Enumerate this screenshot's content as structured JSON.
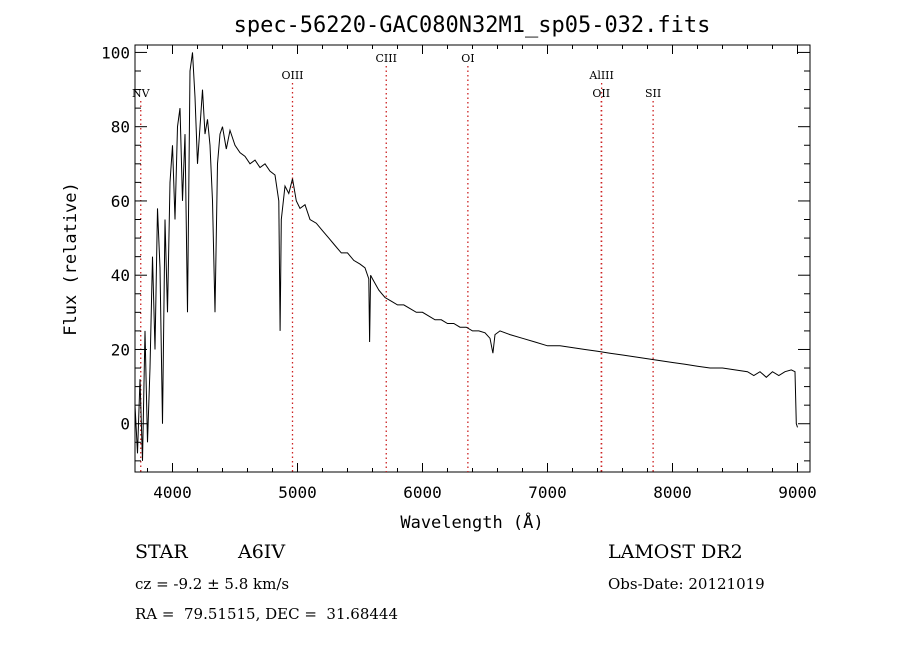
{
  "chart_data": {
    "type": "line",
    "title": "spec-56220-GAC080N32M1_sp05-032.fits",
    "xlabel": "Wavelength (Å)",
    "ylabel": "Flux (relative)",
    "xlim": [
      3700,
      9100
    ],
    "ylim": [
      -13,
      102
    ],
    "x_ticks": [
      "4000",
      "5000",
      "6000",
      "7000",
      "8000",
      "9000"
    ],
    "y_ticks": [
      "0",
      "20",
      "40",
      "60",
      "80",
      "100"
    ],
    "x_tick_values": [
      4000,
      5000,
      6000,
      7000,
      8000,
      9000
    ],
    "y_tick_values": [
      0,
      20,
      40,
      60,
      80,
      100
    ],
    "grid": false,
    "line_color": "#000000",
    "marker_color": "#cc2222",
    "line_markers": [
      {
        "label": "NV",
        "x": 3746,
        "level": 2
      },
      {
        "label": "OIII",
        "x": 4960,
        "level": 1
      },
      {
        "label": "CIII",
        "x": 5710,
        "level": 0
      },
      {
        "label": "OI",
        "x": 6363,
        "level": 0
      },
      {
        "label": "AlIII",
        "x": 7433,
        "level": 1
      },
      {
        "label": "OII",
        "x": 7430,
        "level": 2
      },
      {
        "label": "SII",
        "x": 7845,
        "level": 2
      }
    ],
    "series": [
      {
        "x": [
          3700,
          3720,
          3740,
          3760,
          3780,
          3800,
          3820,
          3840,
          3860,
          3880,
          3900,
          3920,
          3940,
          3960,
          3980,
          4000,
          4020,
          4040,
          4060,
          4080,
          4100,
          4120,
          4140,
          4160,
          4180,
          4200,
          4220,
          4240,
          4260,
          4280,
          4300,
          4320,
          4340,
          4360,
          4380,
          4400,
          4430,
          4460,
          4500,
          4540,
          4580,
          4620,
          4660,
          4700,
          4740,
          4780,
          4820,
          4850,
          4861,
          4870,
          4900,
          4930,
          4960,
          4990,
          5020,
          5060,
          5100,
          5150,
          5200,
          5250,
          5300,
          5350,
          5400,
          5450,
          5500,
          5540,
          5570,
          5577,
          5585,
          5600,
          5650,
          5700,
          5750,
          5800,
          5850,
          5900,
          5950,
          6000,
          6050,
          6100,
          6150,
          6200,
          6250,
          6300,
          6350,
          6400,
          6450,
          6500,
          6540,
          6563,
          6580,
          6620,
          6700,
          6800,
          6900,
          7000,
          7100,
          7200,
          7300,
          7400,
          7500,
          7600,
          7700,
          7800,
          7900,
          8000,
          8100,
          8200,
          8300,
          8400,
          8500,
          8600,
          8650,
          8700,
          8750,
          8800,
          8850,
          8900,
          8950,
          8980,
          8990,
          9000
        ],
        "y": [
          5,
          -8,
          12,
          -10,
          25,
          -5,
          15,
          45,
          20,
          58,
          42,
          0,
          55,
          30,
          65,
          75,
          55,
          80,
          85,
          60,
          78,
          30,
          95,
          100,
          88,
          70,
          80,
          90,
          78,
          82,
          75,
          60,
          30,
          70,
          78,
          80,
          74,
          79,
          75,
          73,
          72,
          70,
          71,
          69,
          70,
          68,
          67,
          60,
          25,
          55,
          64,
          62,
          66,
          60,
          58,
          59,
          55,
          54,
          52,
          50,
          48,
          46,
          46,
          44,
          43,
          42,
          39,
          22,
          40,
          39,
          36,
          34,
          33,
          32,
          32,
          31,
          30,
          30,
          29,
          28,
          28,
          27,
          27,
          26,
          26,
          25,
          25,
          24.5,
          23,
          19,
          24,
          25,
          24,
          23,
          22,
          21,
          21,
          20.5,
          20,
          19.5,
          19,
          18.5,
          18,
          17.5,
          17,
          16.5,
          16,
          15.5,
          15,
          15,
          14.5,
          14,
          13,
          14,
          12.5,
          14,
          13,
          14,
          14.5,
          14,
          0,
          -1
        ]
      }
    ]
  },
  "info": {
    "object_class": "STAR",
    "subclass": "A6IV",
    "survey": "LAMOST DR2",
    "redshift": "cz = -9.2 ± 5.8 km/s",
    "obs_date": "Obs-Date: 20121019",
    "coords": "RA =  79.51515, DEC =  31.68444"
  }
}
